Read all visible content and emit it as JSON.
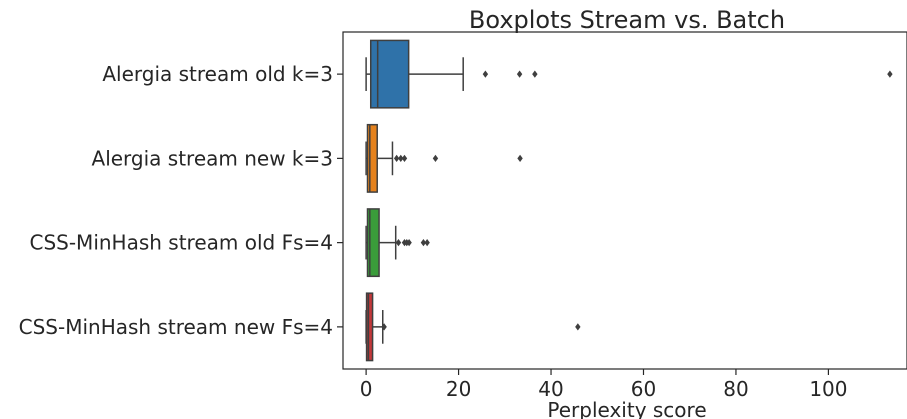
{
  "chart_data": {
    "type": "boxplot",
    "orientation": "horizontal",
    "title": "Boxplots Stream vs. Batch",
    "xlabel": "Perplexity score",
    "ylabel": "",
    "xlim": [
      -5,
      117
    ],
    "xticks": [
      0,
      20,
      40,
      60,
      80,
      100
    ],
    "grid": false,
    "series": [
      {
        "name": "Alergia stream old k=3",
        "color": "#2f72a9",
        "whisker_low": 0,
        "q1": 1,
        "median": 2.5,
        "q3": 9.2,
        "whisker_high": 21,
        "outliers": [
          25.8,
          33.2,
          36.5,
          113.3
        ]
      },
      {
        "name": "Alergia stream new k=3",
        "color": "#e5821d",
        "whisker_low": 0,
        "q1": 0.3,
        "median": 0.8,
        "q3": 2.4,
        "whisker_high": 5.7,
        "outliers": [
          6.6,
          7.5,
          8.3,
          15,
          33.3
        ]
      },
      {
        "name": "CSS-MinHash stream old Fs=4",
        "color": "#3a9c3a",
        "whisker_low": 0,
        "q1": 0.3,
        "median": 0.8,
        "q3": 2.8,
        "whisker_high": 6.4,
        "outliers": [
          7,
          8.3,
          8.8,
          9.3,
          12.4,
          13.2
        ]
      },
      {
        "name": "CSS-MinHash stream new Fs=4",
        "color": "#c3383a",
        "whisker_low": 0,
        "q1": 0.1,
        "median": 0.5,
        "q3": 1.4,
        "whisker_high": 3.6,
        "outliers": [
          3.9,
          45.8
        ]
      }
    ]
  }
}
